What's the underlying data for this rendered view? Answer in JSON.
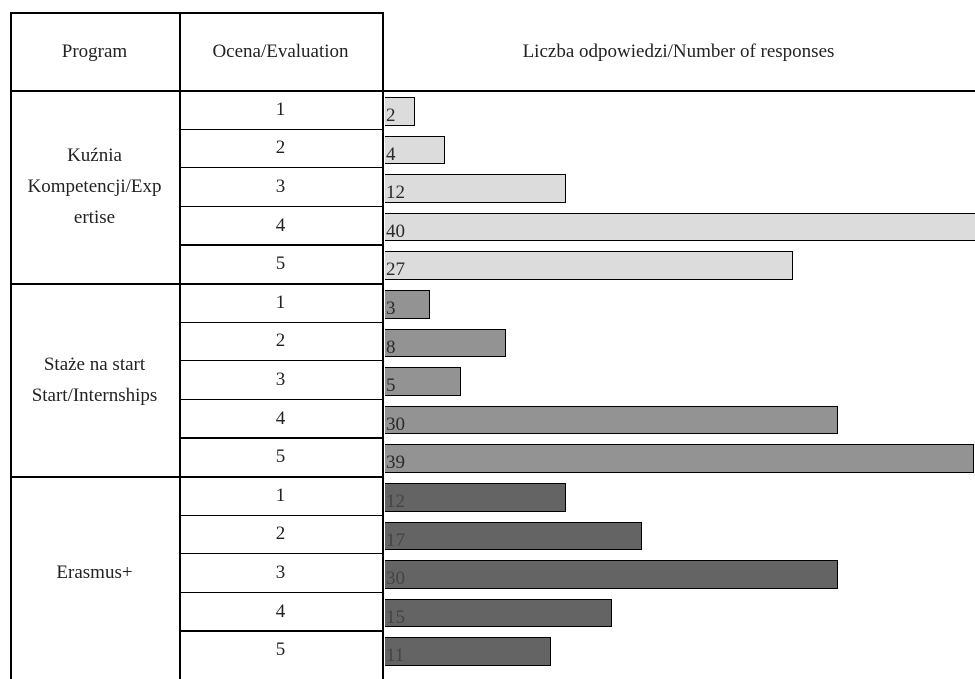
{
  "table": {
    "headers": {
      "program": "Program",
      "evaluation": "Ocena/Evaluation",
      "responses": "Liczba odpowiedzi/Number of responses"
    }
  },
  "chart_data": {
    "type": "bar",
    "orientation": "horizontal",
    "xlim": [
      0,
      40
    ],
    "groups": [
      {
        "program_lines": [
          "Kuźnia",
          "Kompetencji/Exp",
          "ertise"
        ],
        "categories": [
          "1",
          "2",
          "3",
          "4",
          "5"
        ],
        "values": [
          2,
          4,
          12,
          40,
          27
        ],
        "color": "#dcdcdc"
      },
      {
        "program_lines": [
          "Staże na start",
          "Start/Internships"
        ],
        "categories": [
          "1",
          "2",
          "3",
          "4",
          "5"
        ],
        "values": [
          3,
          8,
          5,
          30,
          39
        ],
        "color": "#939393"
      },
      {
        "program_lines": [
          "Erasmus+"
        ],
        "categories": [
          "1",
          "2",
          "3",
          "4",
          "5"
        ],
        "values": [
          12,
          17,
          30,
          15,
          11
        ],
        "color": "#646464"
      }
    ]
  }
}
